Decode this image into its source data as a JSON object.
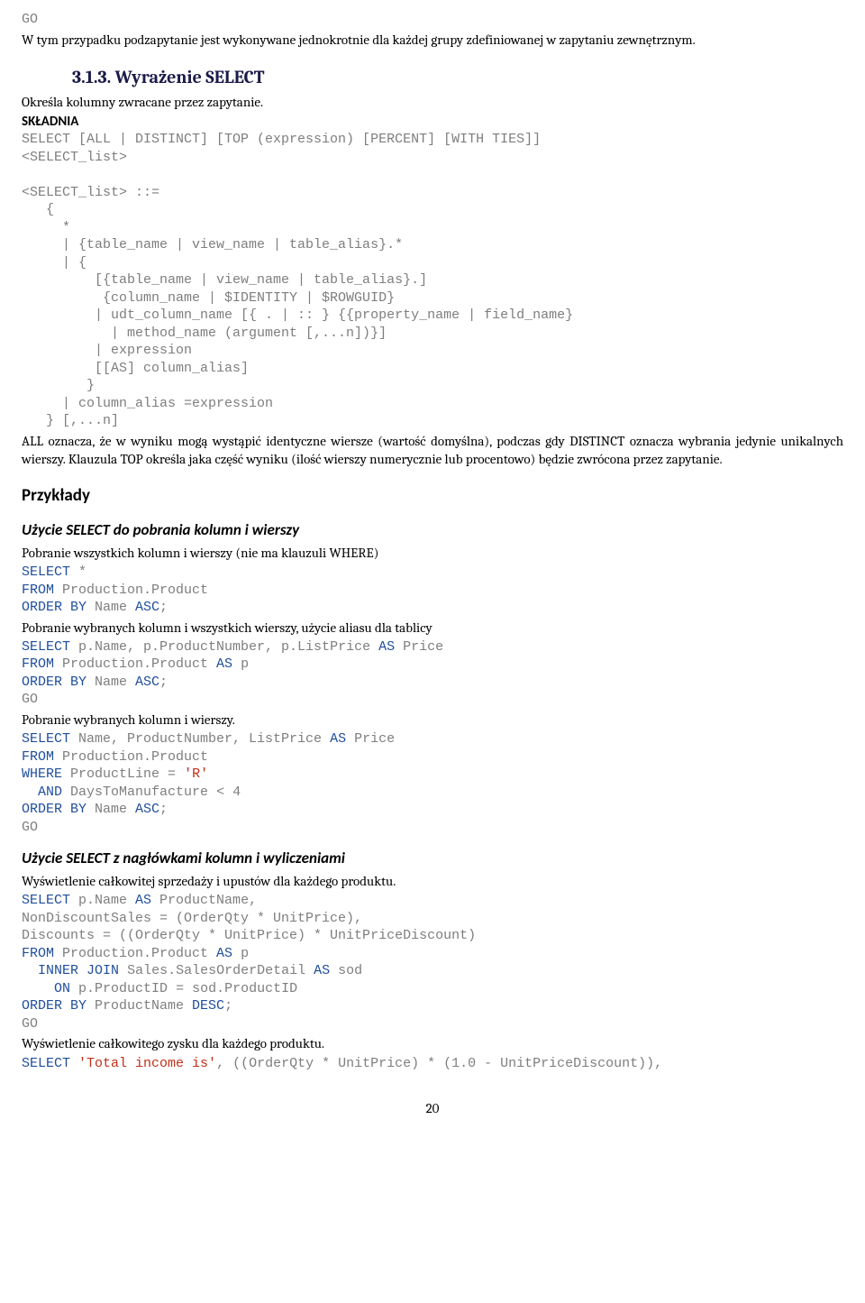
{
  "code_go1": "GO",
  "para1": "W tym przypadku podzapytanie jest wykonywane jednokrotnie dla każdej grupy zdefiniowanej w zapytaniu zewnętrznym.",
  "sec313": "3.1.3. Wyrażenie SELECT",
  "para2": "Określa kolumny zwracane przez zapytanie.",
  "label_skladnia": "SKŁADNIA",
  "code_syntax": "SELECT [ALL | DISTINCT] [TOP (expression) [PERCENT] [WITH TIES]]\n<SELECT_list>\n\n<SELECT_list> ::=\n   {\n     *\n     | {table_name | view_name | table_alias}.*\n     | {\n         [{table_name | view_name | table_alias}.]\n          {column_name | $IDENTITY | $ROWGUID}\n         | udt_column_name [{ . | :: } {{property_name | field_name}\n           | method_name (argument [,...n])}]\n         | expression\n         [[AS] column_alias]\n        }\n     | column_alias =expression\n   } [,...n]",
  "para3": "ALL oznacza, że w wyniku mogą wystąpić identyczne wiersze (wartość domyślna), podczas gdy DISTINCT oznacza wybrania jedynie unikalnych wierszy. Klauzula TOP określa jaka część wyniku (ilość wierszy numerycznie lub procentowo) będzie zwrócona przez zapytanie.",
  "h_przyklady": "Przykłady",
  "h_ex1": "Użycie SELECT do pobrania kolumn i wierszy",
  "para4": "Pobranie wszystkich kolumn i wierszy (nie ma klauzuli WHERE)",
  "sql1": {
    "select": "SELECT",
    "star": " *",
    "from": "FROM",
    "from_t": " Production.Product",
    "order": "ORDER BY",
    "order_t": " Name ",
    "asc": "ASC",
    "semi": ";"
  },
  "para5": "Pobranie wybranych kolumn i wszystkich wierszy, użycie aliasu dla tablicy",
  "sql2": {
    "select": "SELECT",
    "cols": " p.Name, p.ProductNumber, p.ListPrice ",
    "as": "AS",
    "as_t": " Price",
    "from": "FROM",
    "from_t": " Production.Product ",
    "as2": "AS",
    "as2_t": " p",
    "order": "ORDER BY",
    "order_t": " Name ",
    "asc": "ASC",
    "semi": ";",
    "go": "GO"
  },
  "para6": "Pobranie wybranych kolumn i wierszy.",
  "sql3": {
    "select": "SELECT",
    "cols": " Name, ProductNumber, ListPrice ",
    "as": "AS",
    "as_t": " Price",
    "from": "FROM",
    "from_t": " Production.Product",
    "where": "WHERE",
    "where_t": " ProductLine ",
    "eq": "=",
    "sp": " ",
    "str": "'R'",
    "and_pad": "  ",
    "and": "AND",
    "and_t": " DaysToManufacture ",
    "lt": "<",
    "sp2": " ",
    "num": "4",
    "order": "ORDER BY",
    "order_t": " Name ",
    "asc": "ASC",
    "semi": ";",
    "go": "GO"
  },
  "h_ex2": "Użycie SELECT z nagłówkami kolumn i wyliczeniami",
  "para7": "Wyświetlenie całkowitej sprzedaży i upustów dla każdego produktu.",
  "sql4": {
    "select": "SELECT",
    "sel_t": " p.Name ",
    "as": "AS",
    "as_t": " ProductName,",
    "l2": "NonDiscountSales = (OrderQty * UnitPrice),",
    "l3": "Discounts = ((OrderQty * UnitPrice) * UnitPriceDiscount)",
    "from": "FROM",
    "from_t": " Production.Product ",
    "as2": "AS",
    "as2_t": " p",
    "join_pad": "  ",
    "inner": "INNER",
    "sp": " ",
    "join": "JOIN",
    "join_t": " Sales.SalesOrderDetail ",
    "as3": "AS",
    "as3_t": " sod",
    "on_pad": "    ",
    "on": "ON",
    "on_t": " p.ProductID ",
    "eq": "=",
    "on_t2": " sod.ProductID",
    "order": "ORDER BY",
    "order_t": " ProductName ",
    "desc": "DESC",
    "semi": ";",
    "go": "GO"
  },
  "para8": "Wyświetlenie całkowitego zysku dla każdego produktu.",
  "sql5": {
    "select": "SELECT",
    "sp": " ",
    "str": "'Total income is'",
    "rest1": ", ((OrderQty * UnitPrice) * (",
    "num1": "1.0",
    "rest2": " - UnitPriceDiscount)),"
  },
  "pagenum": "20",
  "colors": {
    "keyword": "#1f4e9c",
    "operator_gray": "#7e7e7e",
    "string_red": "#bf311a",
    "text": "#000000",
    "heading_navy": "#1a1a4a"
  }
}
